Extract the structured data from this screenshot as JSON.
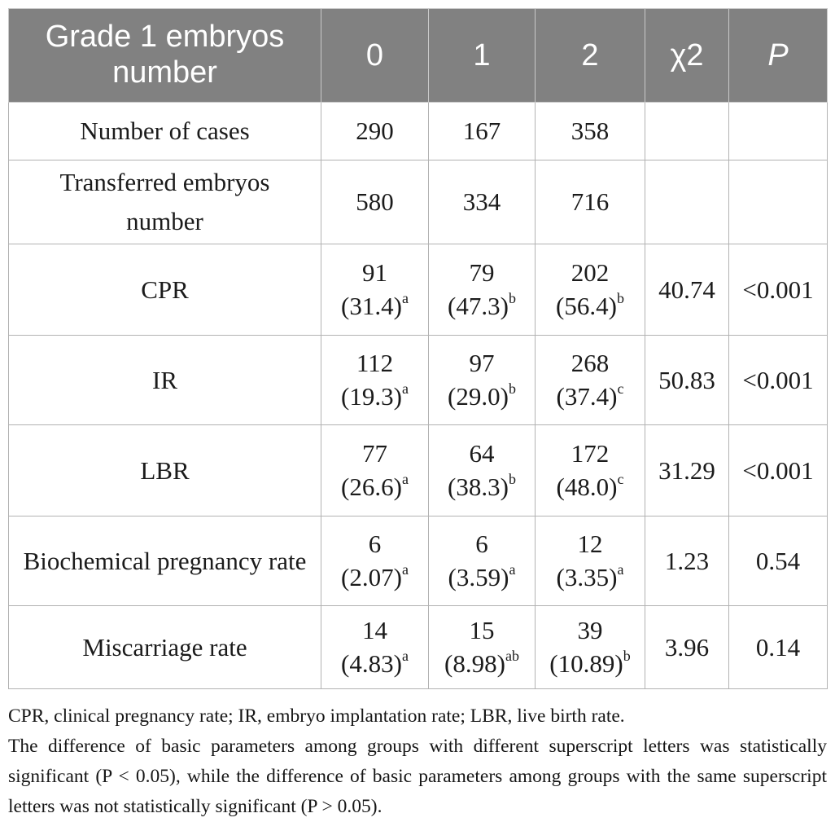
{
  "colors": {
    "header_bg": "#818181",
    "header_text": "#ffffff",
    "body_text": "#1b1b1b",
    "border": "#b2b2b2"
  },
  "table": {
    "header": {
      "label": "Grade 1 embryos number",
      "group_0": "0",
      "group_1": "1",
      "group_2": "2",
      "chi2": "χ2",
      "p": "P"
    },
    "rows": [
      {
        "label": "Number of cases",
        "cells": [
          {
            "n": "290"
          },
          {
            "n": "167"
          },
          {
            "n": "358"
          }
        ],
        "chi2": "",
        "p": ""
      },
      {
        "label": "Transferred embryos number",
        "cells": [
          {
            "n": "580"
          },
          {
            "n": "334"
          },
          {
            "n": "716"
          }
        ],
        "chi2": "",
        "p": ""
      },
      {
        "label": "CPR",
        "cells": [
          {
            "n": "91",
            "pct": "(31.4)",
            "sup": "a"
          },
          {
            "n": "79",
            "pct": "(47.3)",
            "sup": "b"
          },
          {
            "n": "202",
            "pct": "(56.4)",
            "sup": "b"
          }
        ],
        "chi2": "40.74",
        "p": "<0.001"
      },
      {
        "label": "IR",
        "cells": [
          {
            "n": "112",
            "pct": "(19.3)",
            "sup": "a"
          },
          {
            "n": "97",
            "pct": "(29.0)",
            "sup": "b"
          },
          {
            "n": "268",
            "pct": "(37.4)",
            "sup": "c"
          }
        ],
        "chi2": "50.83",
        "p": "<0.001"
      },
      {
        "label": "LBR",
        "cells": [
          {
            "n": "77",
            "pct": "(26.6)",
            "sup": "a"
          },
          {
            "n": "64",
            "pct": "(38.3)",
            "sup": "b"
          },
          {
            "n": "172",
            "pct": "(48.0)",
            "sup": "c"
          }
        ],
        "chi2": "31.29",
        "p": "<0.001"
      },
      {
        "label": "Biochemical pregnancy rate",
        "cells": [
          {
            "n": "6",
            "pct": "(2.07)",
            "sup": "a"
          },
          {
            "n": "6",
            "pct": "(3.59)",
            "sup": "a"
          },
          {
            "n": "12",
            "pct": "(3.35)",
            "sup": "a"
          }
        ],
        "chi2": "1.23",
        "p": "0.54"
      },
      {
        "label": "Miscarriage rate",
        "cells": [
          {
            "n": "14",
            "pct": "(4.83)",
            "sup": "a"
          },
          {
            "n": "15",
            "pct": "(8.98)",
            "sup": "ab"
          },
          {
            "n": "39",
            "pct": "(10.89)",
            "sup": "b"
          }
        ],
        "chi2": "3.96",
        "p": "0.14"
      }
    ]
  },
  "footnotes": {
    "abbreviations": "CPR, clinical pregnancy rate; IR, embryo implantation rate; LBR, live birth rate.",
    "significance": "The difference of basic parameters among groups with different superscript letters was statistically significant (P < 0.05), while the difference of basic parameters among groups with the same superscript letters was not statistically significant (P > 0.05)."
  }
}
